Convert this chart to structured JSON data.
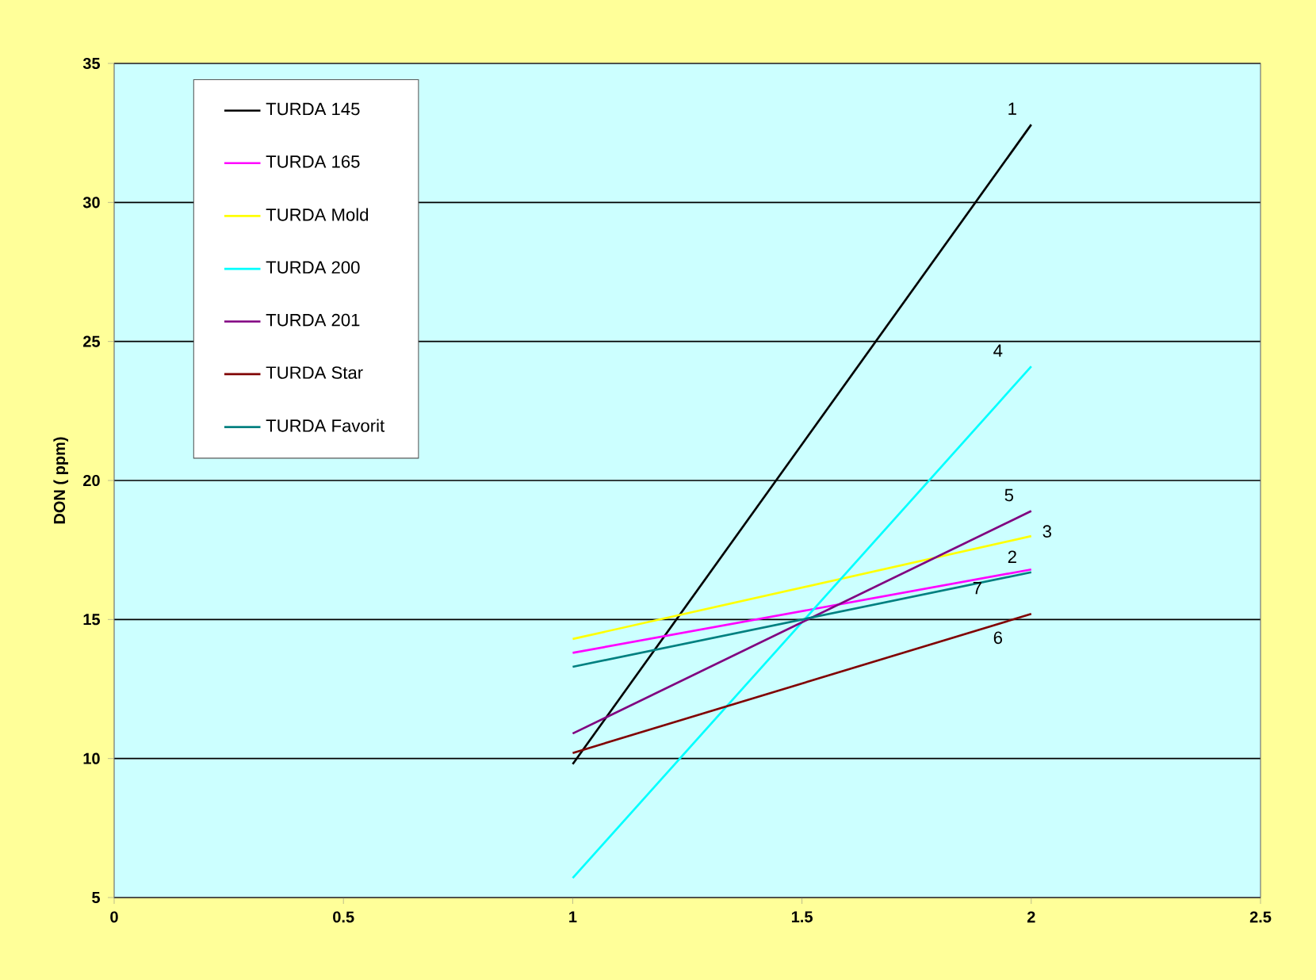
{
  "chart_data": {
    "type": "line",
    "ylabel": "DON  ( ppm)",
    "x": [
      1,
      2
    ],
    "series": [
      {
        "name": "TURDA 145",
        "color": "#000000",
        "values": [
          9.8,
          32.8
        ]
      },
      {
        "name": "TURDA  165",
        "color": "#ff00ff",
        "values": [
          13.8,
          16.8
        ]
      },
      {
        "name": "TURDA Mold",
        "color": "#ffff00",
        "values": [
          14.3,
          18.0
        ]
      },
      {
        "name": "TURDA  200",
        "color": "#00ffff",
        "values": [
          5.7,
          24.1
        ]
      },
      {
        "name": "TURDA   201",
        "color": "#800080",
        "values": [
          10.9,
          18.9
        ]
      },
      {
        "name": "TURDA  Star",
        "color": "#800000",
        "values": [
          10.2,
          15.2
        ]
      },
      {
        "name": "TURDA Favorit",
        "color": "#008080",
        "values": [
          13.3,
          16.7
        ]
      }
    ],
    "annotations": [
      "1",
      "2",
      "3",
      "4",
      "5",
      "6",
      "7"
    ],
    "xlim": [
      0,
      2.5
    ],
    "xticks": [
      0,
      0.5,
      1,
      1.5,
      2,
      2.5
    ],
    "ylim": [
      5,
      35
    ],
    "yticks": [
      5,
      10,
      15,
      20,
      25,
      30,
      35
    ],
    "grid": "y",
    "legend": "top left"
  }
}
